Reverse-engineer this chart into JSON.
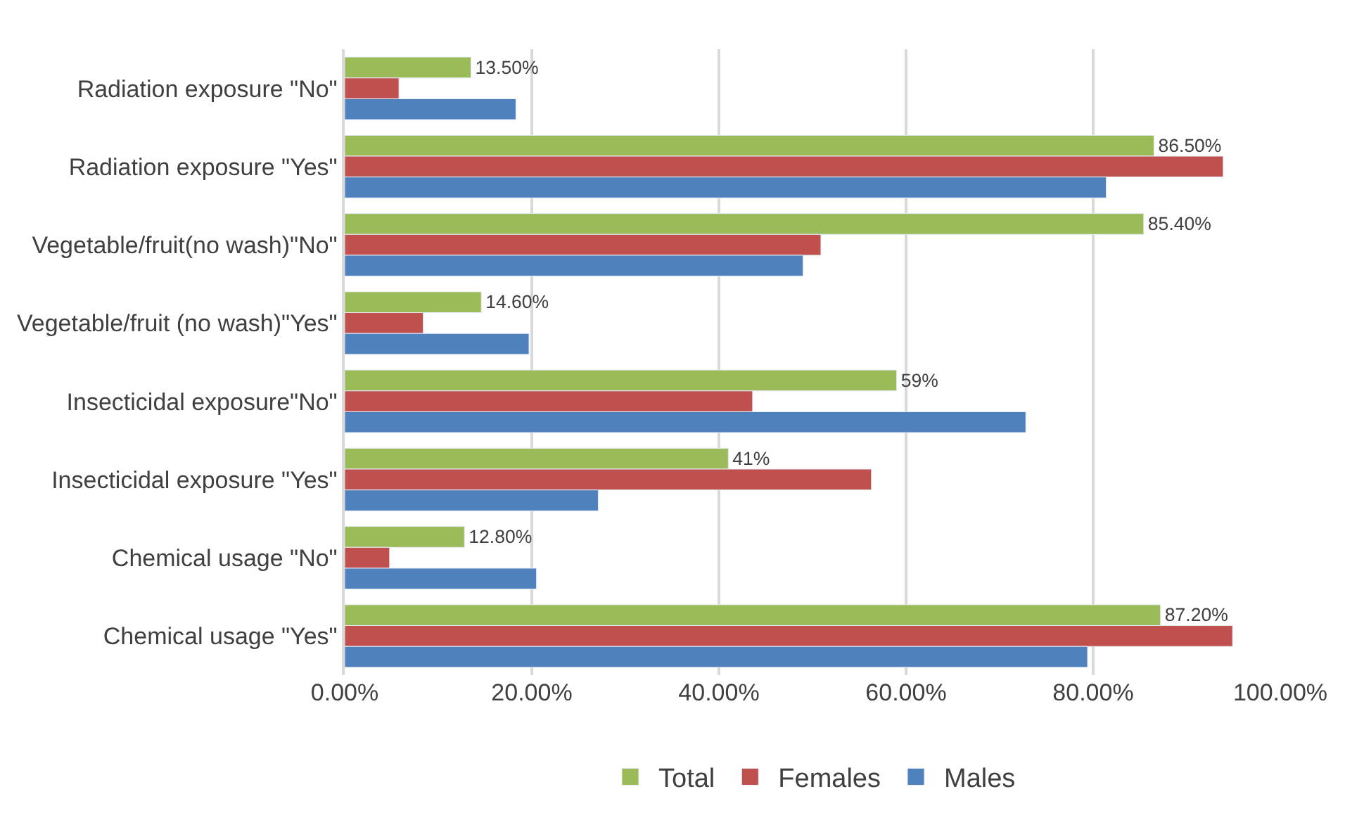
{
  "chart_data": {
    "type": "bar",
    "orientation": "horizontal",
    "categories": [
      "Radiation exposure \"No\"",
      "Radiation exposure \"Yes\"",
      "Vegetable/fruit(no wash)\"No\"",
      "Vegetable/fruit (no wash)\"Yes\"",
      "Insecticidal exposure\"No\"",
      "Insecticidal exposure \"Yes\"",
      "Chemical usage \"No\"",
      "Chemical usage \"Yes\""
    ],
    "series": [
      {
        "name": "Total",
        "color": "#9bbb59",
        "values": [
          13.5,
          86.5,
          85.4,
          14.6,
          59,
          41,
          12.8,
          87.2
        ],
        "value_labels": [
          "13.50%",
          "86.50%",
          "85.40%",
          "14.60%",
          "59%",
          "41%",
          "12.80%",
          "87.20%"
        ]
      },
      {
        "name": "Females",
        "color": "#c0504d",
        "values": [
          5.8,
          93.9,
          50.9,
          8.4,
          43.6,
          56.3,
          4.8,
          94.9
        ]
      },
      {
        "name": "Males",
        "color": "#4f81bd",
        "values": [
          18.3,
          81.4,
          49.0,
          19.7,
          72.8,
          27.1,
          20.5,
          79.4
        ]
      }
    ],
    "xlim": [
      0,
      100
    ],
    "xticks": [
      {
        "value": 0,
        "label": "0.00%"
      },
      {
        "value": 20,
        "label": "20.00%"
      },
      {
        "value": 40,
        "label": "40.00%"
      },
      {
        "value": 60,
        "label": "60.00%"
      },
      {
        "value": 80,
        "label": "80.00%"
      },
      {
        "value": 100,
        "label": "100.00%"
      }
    ],
    "grid": "x",
    "legend": "bottom"
  }
}
